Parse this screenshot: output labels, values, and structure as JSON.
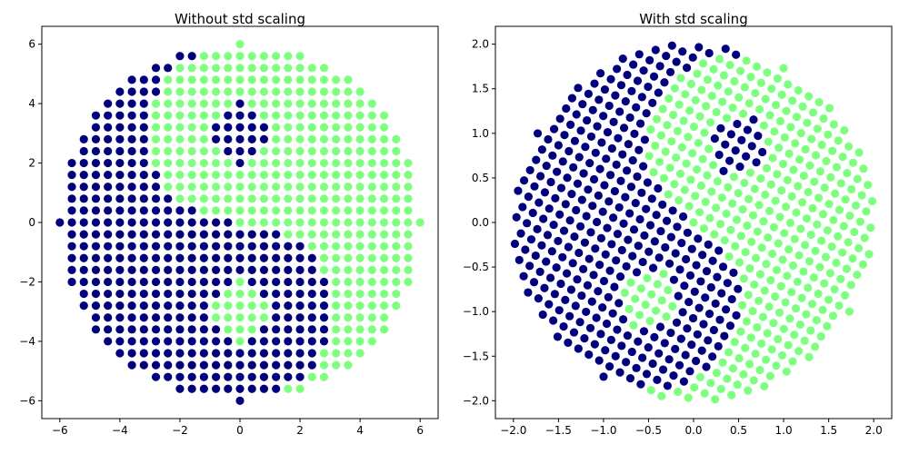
{
  "chart_data": [
    {
      "type": "scatter",
      "title": "Without std scaling",
      "xlabel": "",
      "ylabel": "",
      "xlim": [
        -6.6,
        6.6
      ],
      "ylim": [
        -6.6,
        6.6
      ],
      "xticks": [
        -6,
        -4,
        -2,
        0,
        2,
        4,
        6
      ],
      "yticks": [
        -6,
        -4,
        -2,
        0,
        2,
        4,
        6
      ],
      "xtick_labels": [
        "−6",
        "−4",
        "−2",
        "0",
        "2",
        "4",
        "6"
      ],
      "ytick_labels": [
        "−6",
        "−4",
        "−2",
        "0",
        "2",
        "4",
        "6"
      ],
      "grid": false,
      "data_generation": {
        "pattern": "yin-yang on integer grid",
        "x_range": [
          -6,
          6
        ],
        "y_range": [
          -6,
          6
        ],
        "step": 0.4,
        "outer_radius": 6,
        "small_circle_radius": 1,
        "small_circle_centers": [
          [
            0,
            3
          ],
          [
            0,
            -3
          ]
        ]
      },
      "series": [
        {
          "color": "#00007f",
          "marker": "circle"
        },
        {
          "color": "#7fff7f",
          "marker": "circle"
        }
      ]
    },
    {
      "type": "scatter",
      "title": "With std scaling",
      "xlabel": "",
      "ylabel": "",
      "xlim": [
        -2.2,
        2.2
      ],
      "ylim": [
        -2.2,
        2.2
      ],
      "xticks": [
        -2.0,
        -1.5,
        -1.0,
        -0.5,
        0.0,
        0.5,
        1.0,
        1.5,
        2.0
      ],
      "yticks": [
        -2.0,
        -1.5,
        -1.0,
        -0.5,
        0.0,
        0.5,
        1.0,
        1.5,
        2.0
      ],
      "xtick_labels": [
        "−2.0",
        "−1.5",
        "−1.0",
        "−0.5",
        "0.0",
        "0.5",
        "1.0",
        "1.5",
        "2.0"
      ],
      "ytick_labels": [
        "−2.0",
        "−1.5",
        "−1.0",
        "−0.5",
        "0.0",
        "0.5",
        "1.0",
        "1.5",
        "2.0"
      ],
      "grid": false,
      "data_generation": {
        "pattern": "yin-yang standardized and rotated",
        "rotation_degrees": -30,
        "scale": 0.333,
        "outer_radius": 2
      },
      "series": [
        {
          "color": "#00007f",
          "marker": "circle"
        },
        {
          "color": "#7fff7f",
          "marker": "circle"
        }
      ]
    }
  ]
}
